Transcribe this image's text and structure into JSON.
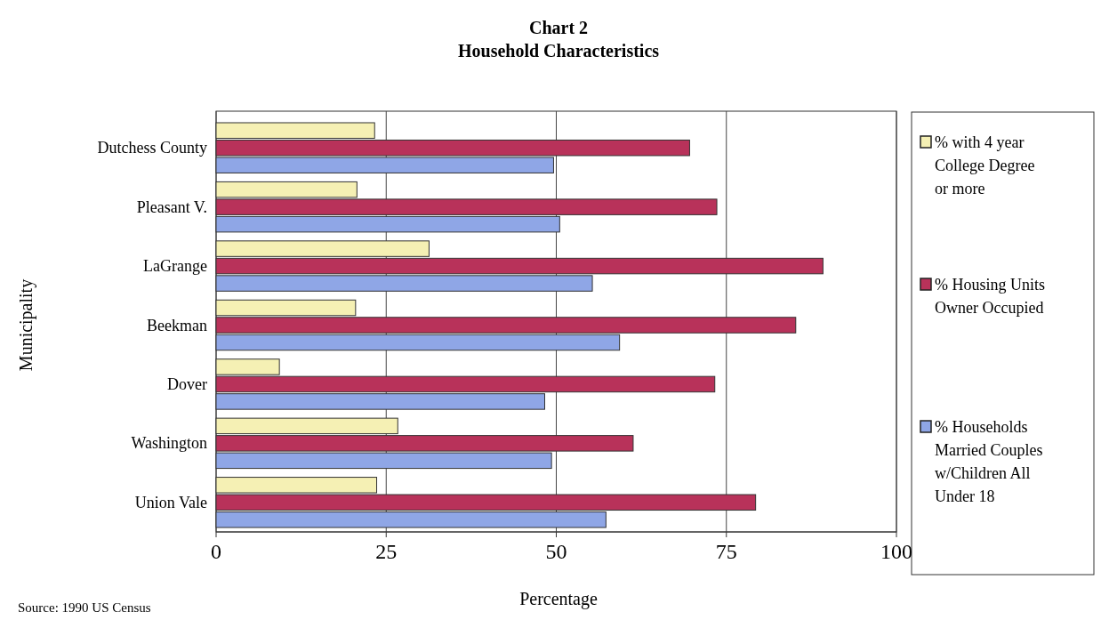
{
  "chart_data": {
    "type": "bar",
    "orientation": "horizontal",
    "title": "Chart 2",
    "subtitle": "Household Characteristics",
    "xlabel": "Percentage",
    "ylabel": "Municipality",
    "categories": [
      "Dutchess County",
      "Pleasant V.",
      "LaGrange",
      "Beekman",
      "Dover",
      "Washington",
      "Union Vale"
    ],
    "series": [
      {
        "name": "% with 4 year College Degree or more",
        "color": "#f5f0b4",
        "values": [
          23.3,
          20.7,
          31.3,
          20.5,
          9.3,
          26.7,
          23.6
        ]
      },
      {
        "name": "% Housing Units Owner Occupied",
        "color": "#b8325a",
        "values": [
          69.6,
          73.6,
          89.2,
          85.2,
          73.3,
          61.3,
          79.3
        ]
      },
      {
        "name": "% Households Married Couples w/Children All Under 18",
        "color": "#8fa6e6",
        "values": [
          49.6,
          50.5,
          55.3,
          59.3,
          48.3,
          49.3,
          57.3
        ]
      }
    ],
    "xlim": [
      0,
      100
    ],
    "xticks": [
      0,
      25,
      50,
      75,
      100
    ],
    "grid": "x",
    "legend": "right",
    "annotations": [
      "Source: 1990 US Census"
    ]
  }
}
